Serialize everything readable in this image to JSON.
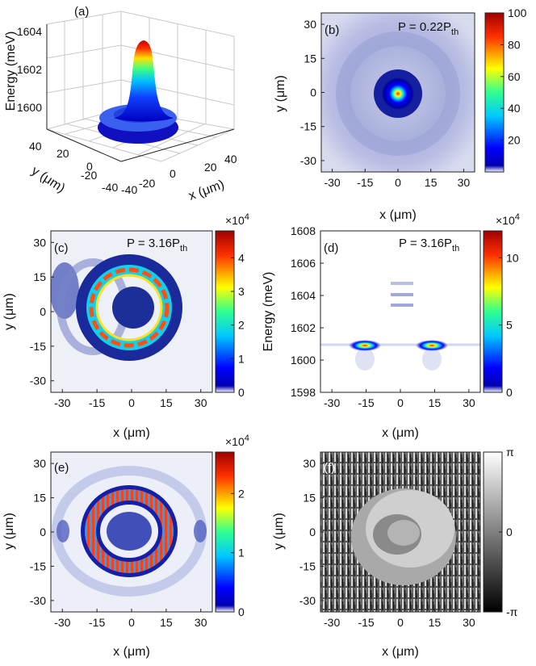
{
  "chart_data": [
    {
      "id": "a",
      "type": "surface3d",
      "panel_label": "(a)",
      "zlabel": "Energy (meV)",
      "xlabel": "x (μm)",
      "ylabel": "y (μm)",
      "zticks": [
        "1604",
        "1602",
        "1600"
      ],
      "xticks": [
        "-40",
        "-20",
        "0",
        "20",
        "40"
      ],
      "yticks": [
        "40",
        "20",
        "0",
        "-20",
        "-40"
      ],
      "zlim": [
        1599,
        1604.5
      ],
      "xlim": [
        -40,
        40
      ],
      "ylim": [
        -40,
        40
      ],
      "peak_energy": 1603.9,
      "base_energy": 1600.0
    },
    {
      "id": "b",
      "type": "heatmap",
      "panel_label": "(b)",
      "annotation": "P = 0.22P",
      "annotation_sub": "th",
      "xlabel": "x (μm)",
      "ylabel": "y (μm)",
      "xticks": [
        "-30",
        "-15",
        "0",
        "15",
        "30"
      ],
      "xtick_values": [
        -30,
        -15,
        0,
        15,
        30
      ],
      "yticks": [
        "30",
        "15",
        "0",
        "-15",
        "-30"
      ],
      "ytick_values": [
        30,
        15,
        0,
        -15,
        -30
      ],
      "xlim": [
        -35,
        35
      ],
      "ylim": [
        -35,
        35
      ],
      "colorbar": {
        "ticks": [
          "100",
          "80",
          "60",
          "40",
          "20"
        ],
        "tick_values": [
          100,
          80,
          60,
          40,
          20
        ],
        "range": [
          0,
          100
        ],
        "multiplier": ""
      }
    },
    {
      "id": "c",
      "type": "heatmap",
      "panel_label": "(c)",
      "annotation": "P = 3.16P",
      "annotation_sub": "th",
      "xlabel": "x (μm)",
      "ylabel": "y (μm)",
      "xticks": [
        "-30",
        "-15",
        "0",
        "15",
        "30"
      ],
      "xtick_values": [
        -30,
        -15,
        0,
        15,
        30
      ],
      "yticks": [
        "30",
        "15",
        "0",
        "-15",
        "-30"
      ],
      "ytick_values": [
        30,
        15,
        0,
        -15,
        -30
      ],
      "xlim": [
        -35,
        35
      ],
      "ylim": [
        -35,
        35
      ],
      "colorbar": {
        "ticks": [
          "4",
          "3",
          "2",
          "1",
          "0"
        ],
        "tick_values": [
          4,
          3,
          2,
          1,
          0
        ],
        "range": [
          0,
          4.8
        ],
        "multiplier": "×10",
        "multiplier_exp": "4"
      }
    },
    {
      "id": "d",
      "type": "heatmap",
      "panel_label": "(d)",
      "annotation": "P = 3.16P",
      "annotation_sub": "th",
      "xlabel": "x (μm)",
      "ylabel": "Energy (meV)",
      "xticks": [
        "-30",
        "-15",
        "0",
        "15",
        "30"
      ],
      "xtick_values": [
        -30,
        -15,
        0,
        15,
        30
      ],
      "yticks": [
        "1608",
        "1606",
        "1604",
        "1602",
        "1600",
        "1598"
      ],
      "ytick_values": [
        1608,
        1606,
        1604,
        1602,
        1600,
        1598
      ],
      "xlim": [
        -35,
        35
      ],
      "ylim": [
        1598,
        1608
      ],
      "colorbar": {
        "ticks": [
          "10",
          "5",
          "0"
        ],
        "tick_values": [
          10,
          5,
          0
        ],
        "range": [
          0,
          12
        ],
        "multiplier": "×10",
        "multiplier_exp": "4"
      }
    },
    {
      "id": "e",
      "type": "heatmap",
      "panel_label": "(e)",
      "xlabel": "x (μm)",
      "ylabel": "y (μm)",
      "xticks": [
        "-30",
        "-15",
        "0",
        "15",
        "30"
      ],
      "xtick_values": [
        -30,
        -15,
        0,
        15,
        30
      ],
      "yticks": [
        "30",
        "15",
        "0",
        "-15",
        "-30"
      ],
      "ytick_values": [
        30,
        15,
        0,
        -15,
        -30
      ],
      "xlim": [
        -35,
        35
      ],
      "ylim": [
        -35,
        35
      ],
      "colorbar": {
        "ticks": [
          "2",
          "1",
          "0"
        ],
        "tick_values": [
          2,
          1,
          0
        ],
        "range": [
          0,
          2.7
        ],
        "multiplier": "×10",
        "multiplier_exp": "4"
      }
    },
    {
      "id": "f",
      "type": "heatmap",
      "panel_label": "(f)",
      "xlabel": "x (μm)",
      "ylabel": "y (μm)",
      "xticks": [
        "-30",
        "-15",
        "0",
        "15",
        "30"
      ],
      "xtick_values": [
        -30,
        -15,
        0,
        15,
        30
      ],
      "yticks": [
        "30",
        "15",
        "0",
        "-15",
        "-30"
      ],
      "ytick_values": [
        30,
        15,
        0,
        -15,
        -30
      ],
      "xlim": [
        -35,
        35
      ],
      "ylim": [
        -35,
        35
      ],
      "colorbar": {
        "ticks": [
          "π",
          "0",
          "-π"
        ],
        "tick_values": [
          3.1416,
          0,
          -3.1416
        ],
        "range": [
          -3.1416,
          3.1416
        ],
        "multiplier": ""
      }
    }
  ]
}
